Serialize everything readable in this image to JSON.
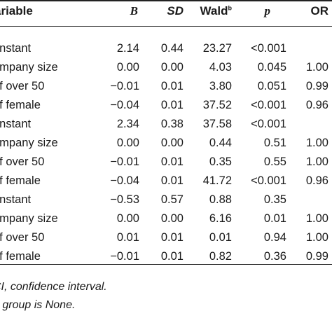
{
  "headers": {
    "variable": "ariable",
    "b": "B",
    "sd": "SD",
    "wald": "Wald",
    "wald_sup": "b",
    "p": "p",
    "or": "OR"
  },
  "rows": [
    {
      "variable": "onstant",
      "b": "2.14",
      "sd": "0.44",
      "wald": "23.27",
      "p": "<0.001",
      "or": ""
    },
    {
      "variable": "ompany size",
      "b": "0.00",
      "sd": "0.00",
      "wald": "4.03",
      "p": "0.045",
      "or": "1.00"
    },
    {
      "variable": "of over 50",
      "b": "−0.01",
      "sd": "0.01",
      "wald": "3.80",
      "p": "0.051",
      "or": "0.99"
    },
    {
      "variable": "of female",
      "b": "−0.04",
      "sd": "0.01",
      "wald": "37.52",
      "p": "<0.001",
      "or": "0.96"
    },
    {
      "variable": "onstant",
      "b": "2.34",
      "sd": "0.38",
      "wald": "37.58",
      "p": "<0.001",
      "or": ""
    },
    {
      "variable": "ompany size",
      "b": "0.00",
      "sd": "0.00",
      "wald": "0.44",
      "p": "0.51",
      "or": "1.00"
    },
    {
      "variable": "of over 50",
      "b": "−0.01",
      "sd": "0.01",
      "wald": "0.35",
      "p": "0.55",
      "or": "1.00"
    },
    {
      "variable": "of female",
      "b": "−0.04",
      "sd": "0.01",
      "wald": "41.72",
      "p": "<0.001",
      "or": "0.96"
    },
    {
      "variable": "onstant",
      "b": "−0.53",
      "sd": "0.57",
      "wald": "0.88",
      "p": "0.35",
      "or": ""
    },
    {
      "variable": "ompany size",
      "b": "0.00",
      "sd": "0.00",
      "wald": "6.16",
      "p": "0.01",
      "or": "1.00"
    },
    {
      "variable": "of over 50",
      "b": "0.01",
      "sd": "0.01",
      "wald": "0.01",
      "p": "0.94",
      "or": "1.00"
    },
    {
      "variable": "of female",
      "b": "−0.01",
      "sd": "0.01",
      "wald": "0.82",
      "p": "0.36",
      "or": "0.99"
    }
  ],
  "footnotes": [
    "CI, confidence interval.",
    "e group is None."
  ]
}
